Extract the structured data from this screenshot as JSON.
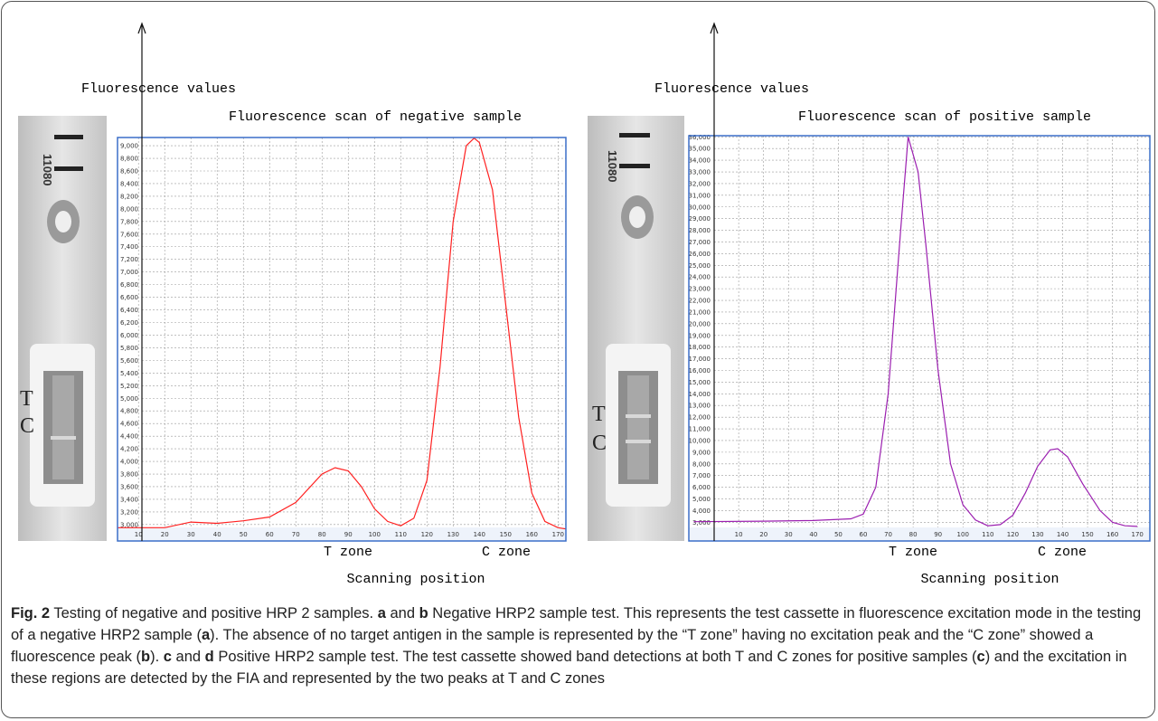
{
  "chart_data": [
    {
      "type": "line",
      "title": "Fluorescence scan of negative sample",
      "y_label": "Fluorescence values",
      "x_label": "Scanning position",
      "annotations": [
        "T zone",
        "C zone"
      ],
      "x": [
        2,
        20,
        30,
        40,
        50,
        60,
        70,
        80,
        85,
        90,
        95,
        100,
        105,
        110,
        115,
        120,
        125,
        130,
        135,
        138,
        140,
        145,
        150,
        155,
        160,
        165,
        170,
        173
      ],
      "series": [
        {
          "color": "#ff2020",
          "values": [
            2950,
            2950,
            3040,
            3020,
            3060,
            3120,
            3350,
            3800,
            3900,
            3850,
            3600,
            3250,
            3050,
            2980,
            3100,
            3700,
            5500,
            7800,
            9000,
            9120,
            9050,
            8300,
            6500,
            4700,
            3500,
            3050,
            2950,
            2930
          ]
        }
      ],
      "xlim": [
        2,
        173
      ],
      "ylim": [
        2740,
        9130
      ],
      "xticks": [
        10,
        20,
        30,
        40,
        50,
        60,
        70,
        80,
        90,
        100,
        110,
        120,
        130,
        140,
        150,
        160,
        170
      ],
      "yticks": [
        {
          "value": 3000,
          "label": "3,000"
        },
        {
          "value": 3200,
          "label": "3,200"
        },
        {
          "value": 3400,
          "label": "3,400"
        },
        {
          "value": 3600,
          "label": "3,600"
        },
        {
          "value": 3800,
          "label": "3,800"
        },
        {
          "value": 4000,
          "label": "4,000"
        },
        {
          "value": 4200,
          "label": "4,200"
        },
        {
          "value": 4400,
          "label": "4,400"
        },
        {
          "value": 4600,
          "label": "4,600"
        },
        {
          "value": 4800,
          "label": "4,800"
        },
        {
          "value": 5000,
          "label": "5,000"
        },
        {
          "value": 5200,
          "label": "5,200"
        },
        {
          "value": 5400,
          "label": "5,400"
        },
        {
          "value": 5600,
          "label": "5,600"
        },
        {
          "value": 5800,
          "label": "5,800"
        },
        {
          "value": 6000,
          "label": "6,000"
        },
        {
          "value": 6200,
          "label": "6,200"
        },
        {
          "value": 6400,
          "label": "6,400"
        },
        {
          "value": 6600,
          "label": "6,600"
        },
        {
          "value": 6800,
          "label": "6,800"
        },
        {
          "value": 7000,
          "label": "7,000"
        },
        {
          "value": 7200,
          "label": "7,200"
        },
        {
          "value": 7400,
          "label": "7,400"
        },
        {
          "value": 7600,
          "label": "7,600"
        },
        {
          "value": 7800,
          "label": "7,800"
        },
        {
          "value": 8000,
          "label": "8,000"
        },
        {
          "value": 8200,
          "label": "8,200"
        },
        {
          "value": 8400,
          "label": "8,400"
        },
        {
          "value": 8600,
          "label": "8,600"
        },
        {
          "value": 8800,
          "label": "8,800"
        },
        {
          "value": 9000,
          "label": "9,000"
        }
      ],
      "grid": true
    },
    {
      "type": "line",
      "title": "Fluorescence scan of positive sample",
      "y_label": "Fluorescence values",
      "x_label": "Scanning position",
      "annotations": [
        "T zone",
        "C zone"
      ],
      "x": [
        -8,
        20,
        40,
        55,
        60,
        65,
        70,
        75,
        78,
        82,
        85,
        90,
        95,
        100,
        105,
        110,
        115,
        120,
        125,
        130,
        135,
        138,
        142,
        148,
        155,
        160,
        165,
        170
      ],
      "series": [
        {
          "color": "#9b1fb0",
          "values": [
            3050,
            3100,
            3150,
            3300,
            3700,
            6000,
            14000,
            28000,
            36000,
            33000,
            27000,
            16000,
            8000,
            4500,
            3200,
            2700,
            2800,
            3600,
            5500,
            7800,
            9200,
            9300,
            8600,
            6300,
            4000,
            3000,
            2700,
            2650
          ]
        }
      ],
      "xlim": [
        -10,
        175
      ],
      "ylim": [
        1400,
        36100
      ],
      "xticks": [
        10,
        20,
        30,
        40,
        50,
        60,
        70,
        80,
        90,
        100,
        110,
        120,
        130,
        140,
        150,
        160,
        170
      ],
      "yticks": [
        {
          "value": 3000,
          "label": "3,000"
        },
        {
          "value": 4000,
          "label": "4,000"
        },
        {
          "value": 5000,
          "label": "5,000"
        },
        {
          "value": 6000,
          "label": "6,000"
        },
        {
          "value": 7000,
          "label": "7,000"
        },
        {
          "value": 8000,
          "label": "8,000"
        },
        {
          "value": 9000,
          "label": "9,000"
        },
        {
          "value": 10000,
          "label": "10,000"
        },
        {
          "value": 11000,
          "label": "11,000"
        },
        {
          "value": 12000,
          "label": "12,000"
        },
        {
          "value": 13000,
          "label": "13,000"
        },
        {
          "value": 14000,
          "label": "14,000"
        },
        {
          "value": 15000,
          "label": "15,000"
        },
        {
          "value": 16000,
          "label": "16,000"
        },
        {
          "value": 17000,
          "label": "17,000"
        },
        {
          "value": 18000,
          "label": "18,000"
        },
        {
          "value": 19000,
          "label": "19,000"
        },
        {
          "value": 20000,
          "label": "20,000"
        },
        {
          "value": 21000,
          "label": "21,000"
        },
        {
          "value": 22000,
          "label": "22,000"
        },
        {
          "value": 23000,
          "label": "23,000"
        },
        {
          "value": 24000,
          "label": "24,000"
        },
        {
          "value": 25000,
          "label": "25,000"
        },
        {
          "value": 26000,
          "label": "26,000"
        },
        {
          "value": 27000,
          "label": "27,000"
        },
        {
          "value": 28000,
          "label": "28,000"
        },
        {
          "value": 29000,
          "label": "29,000"
        },
        {
          "value": 30000,
          "label": "30,000"
        },
        {
          "value": 31000,
          "label": "31,000"
        },
        {
          "value": 32000,
          "label": "32,000"
        },
        {
          "value": 33000,
          "label": "33,000"
        },
        {
          "value": 34000,
          "label": "34,000"
        },
        {
          "value": 35000,
          "label": "35,000"
        },
        {
          "value": 36000,
          "label": "36,000"
        }
      ],
      "grid": true
    }
  ],
  "cassettes": [
    {
      "code": "11080",
      "t": "T",
      "c": "C"
    },
    {
      "code": "11080",
      "t": "T",
      "c": "C"
    }
  ],
  "caption": [
    {
      "text": "Fig. 2",
      "bold": true
    },
    {
      "text": " Testing of negative and positive HRP 2 samples. ",
      "bold": false
    },
    {
      "text": "a",
      "bold": true
    },
    {
      "text": " and ",
      "bold": false
    },
    {
      "text": "b",
      "bold": true
    },
    {
      "text": " Negative HRP2 sample test. This represents the test cassette in fluorescence excitation mode in the testing of a negative HRP2 sample (",
      "bold": false
    },
    {
      "text": "a",
      "bold": true
    },
    {
      "text": "). The absence of no target antigen in the sample is represented by the “T zone” having no excitation peak and the “C zone” showed a fluorescence peak (",
      "bold": false
    },
    {
      "text": "b",
      "bold": true
    },
    {
      "text": "). ",
      "bold": false
    },
    {
      "text": "c",
      "bold": true
    },
    {
      "text": " and ",
      "bold": false
    },
    {
      "text": "d",
      "bold": true
    },
    {
      "text": " Positive HRP2 sample test. The test cassette showed band detections at both T and C zones for positive samples (",
      "bold": false
    },
    {
      "text": "c",
      "bold": true
    },
    {
      "text": ") and the excitation in these regions are detected by the FIA and represented by the two peaks at T and C zones",
      "bold": false
    }
  ]
}
